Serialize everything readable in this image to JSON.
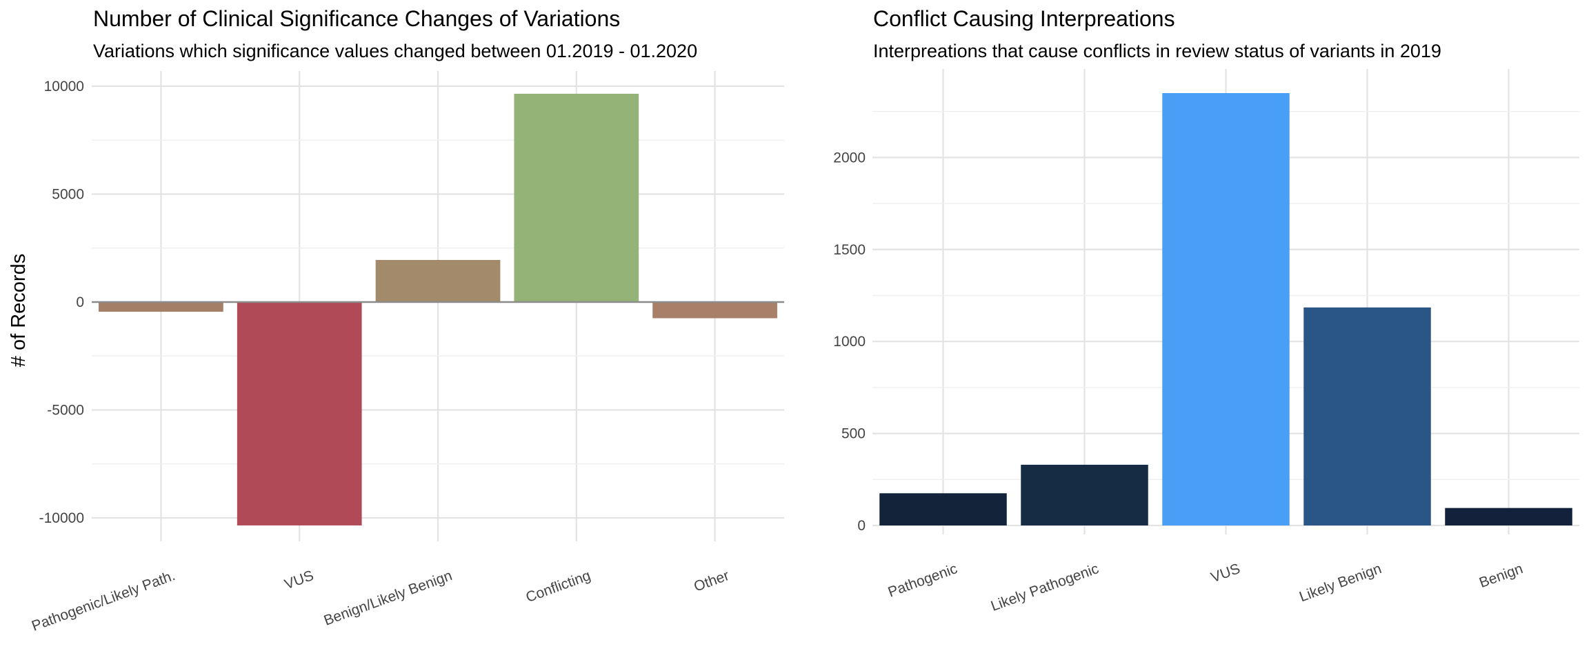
{
  "chart_data": [
    {
      "type": "bar",
      "title": "Number of Clinical Significance Changes of Variations",
      "subtitle": "Variations which significance values changed between 01.2019 - 01.2020",
      "xlabel": "",
      "ylabel": "# of Records",
      "categories": [
        "Pathogenic/Likely Path.",
        "VUS",
        "Benign/Likely Benign",
        "Conflicting",
        "Other"
      ],
      "values": [
        -450,
        -10350,
        1950,
        9650,
        -750
      ],
      "colors": [
        "#a47e66",
        "#b04a57",
        "#a38a6a",
        "#94b377",
        "#a8806a"
      ],
      "ylim": [
        -10600,
        10600
      ],
      "yticks": [
        -10000,
        -5000,
        0,
        5000,
        10000
      ],
      "ytick_labels": [
        "-10000",
        "-5000",
        "0",
        "5000",
        "10000"
      ],
      "grid": true,
      "zero_line": true
    },
    {
      "type": "bar",
      "title": "Conflict Causing Interpreations",
      "subtitle": "Interpreations that cause conflicts in review status of variants in 2019",
      "xlabel": "",
      "ylabel": "",
      "categories": [
        "Pathogenic",
        "Likely Pathogenic",
        "VUS",
        "Likely Benign",
        "Benign"
      ],
      "values": [
        175,
        330,
        2350,
        1185,
        95
      ],
      "colors": [
        "#13233a",
        "#162c45",
        "#489ff5",
        "#2a5686",
        "#13223a"
      ],
      "ylim": [
        0,
        2350
      ],
      "yticks": [
        0,
        500,
        1000,
        1500,
        2000
      ],
      "ytick_labels": [
        "0",
        "500",
        "1000",
        "1500",
        "2000"
      ],
      "grid": true
    }
  ]
}
